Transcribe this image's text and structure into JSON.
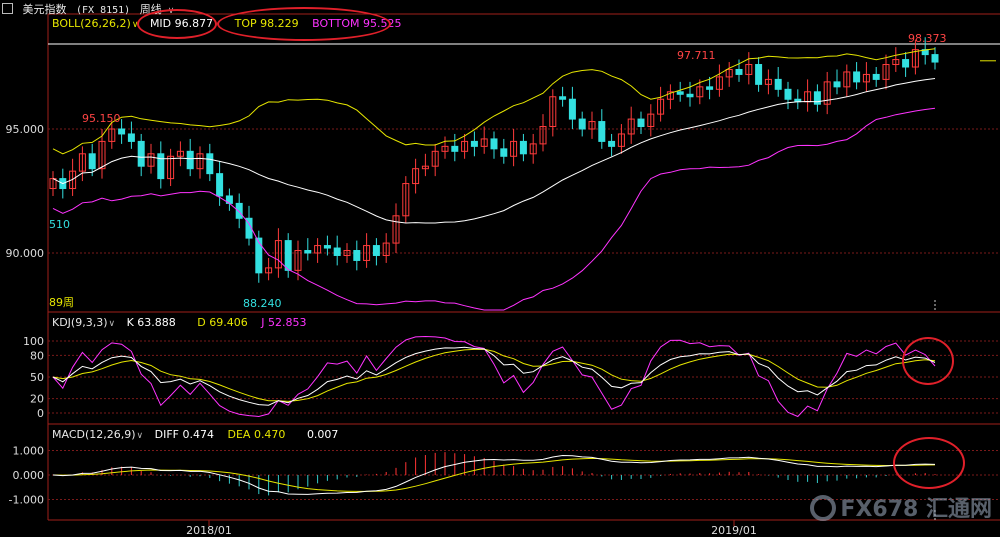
{
  "header": {
    "checkbox_icon": "checkbox-icon",
    "instrument": "美元指数",
    "code": "(FX 8151)",
    "period": "周线"
  },
  "boll": {
    "label": "BOLL(26,26,2)",
    "mid": "MID 96.877",
    "top": "TOP 98.229",
    "bottom": "BOTTOM 95.525",
    "colors": {
      "mid": "#ffffff",
      "top": "#e6e600",
      "bottom": "#ff33ff"
    }
  },
  "kdj": {
    "label": "KDJ(9,3,3)",
    "k": "K 63.888",
    "d": "D 69.406",
    "j": "J 52.853",
    "colors": {
      "k": "#ffffff",
      "d": "#e6e600",
      "j": "#ff33ff"
    }
  },
  "macd": {
    "label": "MACD(12,26,9)",
    "diff": "DIFF 0.474",
    "dea": "DEA 0.470",
    "macd": "0.007",
    "colors": {
      "diff": "#ffffff",
      "dea": "#e6e600",
      "pos": "#ff3333",
      "neg": "#33cccc"
    }
  },
  "watermark": "FX678 汇通网",
  "chart_data": [
    {
      "type": "candlestick",
      "title": "美元指数 (FX 8151) 周线",
      "yticks": [
        "95.000",
        "90.000"
      ],
      "ylim": [
        88.0,
        98.8
      ],
      "xticks": [
        "2018/01",
        "2019/01"
      ],
      "annotations": [
        "95.150",
        "88.240",
        "97.711",
        "98.373",
        "510",
        "89周"
      ],
      "ohlc_close_path": [
        93.0,
        92.6,
        93.3,
        94.0,
        93.4,
        94.5,
        95.0,
        94.8,
        94.5,
        93.5,
        94.0,
        93.0,
        93.9,
        94.1,
        93.4,
        94.0,
        93.2,
        92.3,
        92.0,
        91.4,
        90.6,
        89.2,
        89.4,
        90.5,
        89.3,
        90.1,
        90.0,
        90.3,
        90.2,
        89.9,
        90.1,
        89.7,
        90.3,
        89.9,
        90.4,
        91.5,
        92.8,
        93.4,
        93.5,
        94.1,
        94.3,
        94.1,
        94.5,
        94.3,
        94.6,
        94.2,
        93.9,
        94.5,
        94.0,
        94.4,
        95.1,
        96.3,
        96.2,
        95.4,
        95.0,
        95.3,
        94.5,
        94.3,
        94.8,
        95.4,
        95.1,
        95.6,
        96.2,
        96.5,
        96.4,
        96.3,
        96.7,
        96.6,
        97.1,
        97.4,
        97.2,
        97.6,
        96.8,
        97.0,
        96.6,
        96.2,
        96.1,
        96.5,
        96.0,
        96.9,
        96.7,
        97.3,
        96.9,
        97.2,
        97.0,
        97.6,
        97.8,
        97.5,
        98.2,
        98.0,
        97.7
      ],
      "series": [
        {
          "name": "MID",
          "last": 96.877
        },
        {
          "name": "TOP",
          "last": 98.229
        },
        {
          "name": "BOTTOM",
          "last": 95.525
        }
      ]
    },
    {
      "type": "line",
      "title": "KDJ(9,3,3)",
      "yticks": [
        "100",
        "80",
        "50",
        "20",
        "0"
      ],
      "ylim": [
        -10,
        115
      ],
      "series": [
        {
          "name": "K",
          "last": 63.888
        },
        {
          "name": "D",
          "last": 69.406
        },
        {
          "name": "J",
          "last": 52.853
        }
      ]
    },
    {
      "type": "bar",
      "title": "MACD(12,26,9)",
      "yticks": [
        "1.000",
        "0.000",
        "-1.000"
      ],
      "ylim": [
        -1.9,
        1.35
      ],
      "series": [
        {
          "name": "DIFF",
          "last": 0.474
        },
        {
          "name": "DEA",
          "last": 0.47
        },
        {
          "name": "MACD",
          "last": 0.007
        }
      ]
    }
  ]
}
